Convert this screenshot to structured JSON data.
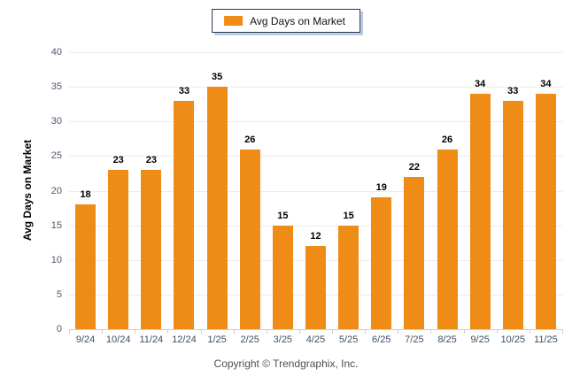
{
  "legend": {
    "label": "Avg Days on Market"
  },
  "footer": {
    "copyright": "Copyright © Trendgraphix, Inc."
  },
  "colors": {
    "bar": "#ef8b17",
    "gridline": "#ececec",
    "axis_line": "#cfcfcf",
    "y_tick_label": "#4a586c",
    "x_tick_label": "#3d4f63",
    "value_label": "#000000",
    "legend_border": "#24385b",
    "legend_shadow": "#bfcbdd",
    "background": "#ffffff"
  },
  "chart_data": {
    "type": "bar",
    "title": "",
    "categories": [
      "9/24",
      "10/24",
      "11/24",
      "12/24",
      "1/25",
      "2/25",
      "3/25",
      "4/25",
      "5/25",
      "6/25",
      "7/25",
      "8/25",
      "9/25",
      "10/25",
      "11/25"
    ],
    "values": [
      18,
      23,
      23,
      33,
      35,
      26,
      15,
      12,
      15,
      19,
      22,
      26,
      34,
      33,
      34
    ],
    "xlabel": "",
    "ylabel": "Avg Days on Market",
    "ylim": [
      0,
      40
    ],
    "yticks": [
      0,
      5,
      10,
      15,
      20,
      25,
      30,
      35,
      40
    ],
    "grid": "horizontal",
    "legend_position": "top-center",
    "data_labels": true
  }
}
